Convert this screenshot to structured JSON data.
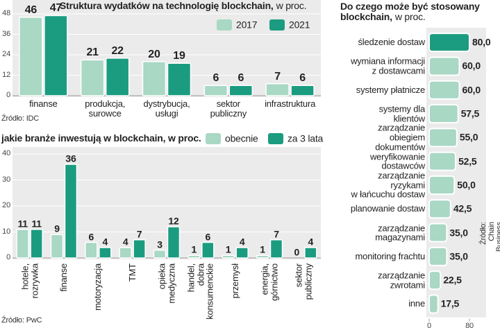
{
  "chart_data": [
    {
      "type": "bar",
      "title": "Struktura wydatków na technologię blockchain,",
      "subtitle": "w proc.",
      "categories": [
        "finanse",
        "produkcja,\nsurowce",
        "dystrybucja,\nusługi",
        "sektor\npubliczny",
        "infrastruktura"
      ],
      "series": [
        {
          "name": "2017",
          "color": "#a9d8c5",
          "values": [
            46,
            21,
            20,
            6,
            7
          ]
        },
        {
          "name": "2021",
          "color": "#1b9c80",
          "values": [
            47,
            22,
            19,
            6,
            6
          ]
        }
      ],
      "ylim": [
        0,
        48
      ],
      "yticks": [
        0,
        12,
        24,
        36,
        48
      ],
      "grid": true,
      "source": "Źródło: IDC"
    },
    {
      "type": "bar",
      "title": "jakie branże inwestują w blockchain, w proc.",
      "categories": [
        "hotele,\nrozrywka",
        "finanse",
        "motoryzacja",
        "TMT",
        "opieka\nmedyczna",
        "handel,\ndobra\nkonsumenckie",
        "przemysł",
        "energia,\ngórnictwo",
        "sektor\npubliczny"
      ],
      "series": [
        {
          "name": "obecnie",
          "color": "#a9d8c5",
          "values": [
            11,
            9,
            6,
            4,
            3,
            1,
            1,
            1,
            0
          ]
        },
        {
          "name": "za 3 lata",
          "color": "#1b9c80",
          "values": [
            11,
            36,
            4,
            7,
            12,
            6,
            4,
            7,
            4
          ]
        }
      ],
      "ylim": [
        0,
        40
      ],
      "yticks": [
        0,
        10,
        20,
        30,
        40
      ],
      "grid": true,
      "source": "Źródło: PwC"
    },
    {
      "type": "barh",
      "title": "Do czego może być stosowany blockchain,",
      "subtitle": "w proc.",
      "categories": [
        "śledzenie dostaw",
        "wymiana informacji\nz dostawcami",
        "systemy płatnicze",
        "systemy dla klientów",
        "zarządzanie obiegiem\ndokumentów",
        "weryfikowanie\ndostawców",
        "zarządzanie ryzykami\nw łańcuchu dostaw",
        "planowanie dostaw",
        "zarządzanie\nmagazynami",
        "monitoring frachtu",
        "zarządzanie\nzwrotami",
        "inne"
      ],
      "values": [
        80,
        60,
        60,
        57.5,
        55,
        52.5,
        50,
        42.5,
        35,
        35,
        22.5,
        17.5
      ],
      "value_labels": [
        "80,0",
        "60,0",
        "60,0",
        "57,5",
        "55,0",
        "52,5",
        "50,0",
        "42,5",
        "35,0",
        "35,0",
        "22,5",
        "17,5"
      ],
      "colors": [
        "#1b9c80",
        "#a9d8c5",
        "#a9d8c5",
        "#a9d8c5",
        "#a9d8c5",
        "#a9d8c5",
        "#a9d8c5",
        "#a9d8c5",
        "#a9d8c5",
        "#a9d8c5",
        "#a9d8c5",
        "#a9d8c5"
      ],
      "xlim": [
        0,
        80
      ],
      "xticks": [
        0,
        80
      ],
      "source": "Źródło: Chain Business Insights"
    }
  ]
}
